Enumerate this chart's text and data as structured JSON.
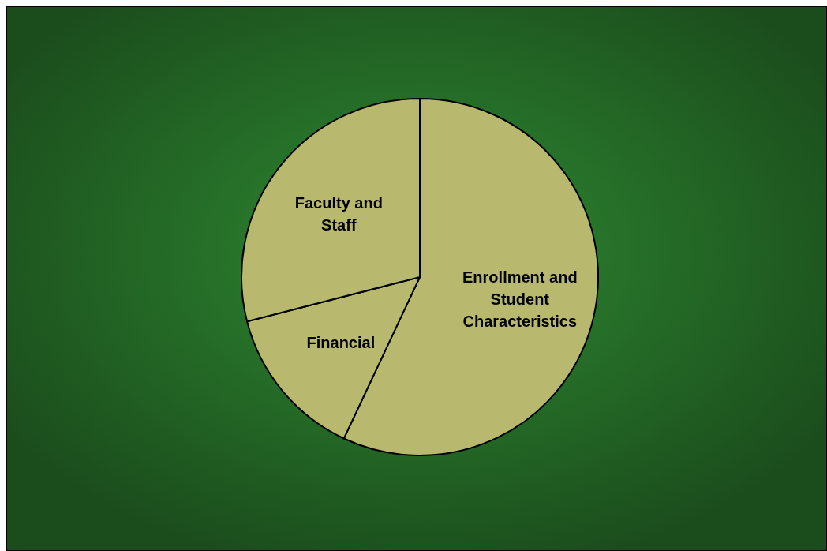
{
  "chart_data": {
    "type": "pie",
    "categories": [
      "Enrollment and Student Characteristics",
      "Financial",
      "Faculty and Staff"
    ],
    "values": [
      57,
      14,
      29
    ],
    "colors": [
      "#b8b86e",
      "#b8b86e",
      "#b8b86e"
    ]
  }
}
